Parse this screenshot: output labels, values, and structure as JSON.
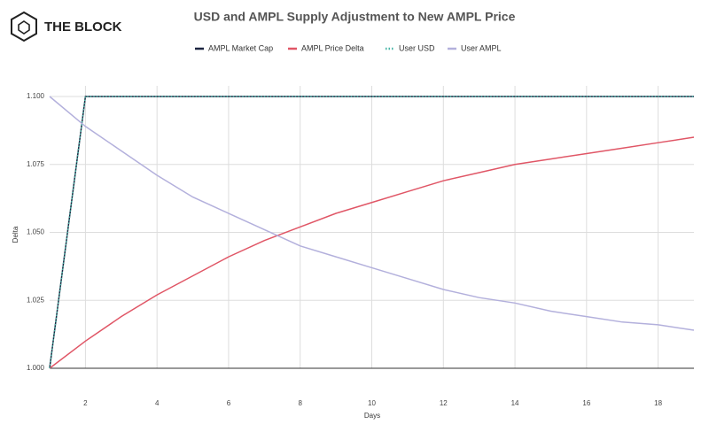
{
  "brand": "THE BLOCK",
  "chart_data": {
    "type": "line",
    "title": "USD and AMPL Supply Adjustment to New AMPL Price",
    "x_label": "Days",
    "y_label": "Delta",
    "x": [
      1,
      2,
      3,
      4,
      5,
      6,
      7,
      8,
      9,
      10,
      11,
      12,
      13,
      14,
      15,
      16,
      17,
      18,
      19
    ],
    "xlim": [
      1,
      19
    ],
    "xticks": [
      2,
      4,
      6,
      8,
      10,
      12,
      14,
      16,
      18
    ],
    "ylim": [
      1,
      1.1
    ],
    "yticks": [
      {
        "value": 1,
        "label": "1.000"
      },
      {
        "value": 1.025,
        "label": "1.025"
      },
      {
        "value": 1.05,
        "label": "1.050"
      },
      {
        "value": 1.075,
        "label": "1.075"
      },
      {
        "value": 1.1,
        "label": "1.100"
      }
    ],
    "grid": true,
    "legend": "top",
    "series": [
      {
        "name": "AMPL Market Cap",
        "color": "#1c2541",
        "style": "solid",
        "values": [
          1,
          1.1,
          1.1,
          1.1,
          1.1,
          1.1,
          1.1,
          1.1,
          1.1,
          1.1,
          1.1,
          1.1,
          1.1,
          1.1,
          1.1,
          1.1,
          1.1,
          1.1,
          1.1
        ]
      },
      {
        "name": "AMPL Price Delta",
        "color": "#e05666",
        "style": "solid",
        "values": [
          1,
          1.01,
          1.019,
          1.027,
          1.034,
          1.041,
          1.047,
          1.052,
          1.057,
          1.061,
          1.065,
          1.069,
          1.072,
          1.075,
          1.077,
          1.079,
          1.081,
          1.083,
          1.085
        ]
      },
      {
        "name": "User USD",
        "color": "#45b5a6",
        "style": "dotted",
        "values": [
          1,
          1.1,
          1.1,
          1.1,
          1.1,
          1.1,
          1.1,
          1.1,
          1.1,
          1.1,
          1.1,
          1.1,
          1.1,
          1.1,
          1.1,
          1.1,
          1.1,
          1.1,
          1.1
        ]
      },
      {
        "name": "User AMPL",
        "color": "#b3b0dc",
        "style": "solid",
        "values": [
          1.1,
          1.089,
          1.08,
          1.071,
          1.063,
          1.057,
          1.051,
          1.045,
          1.041,
          1.037,
          1.033,
          1.029,
          1.026,
          1.024,
          1.021,
          1.019,
          1.017,
          1.016,
          1.014
        ]
      }
    ]
  }
}
